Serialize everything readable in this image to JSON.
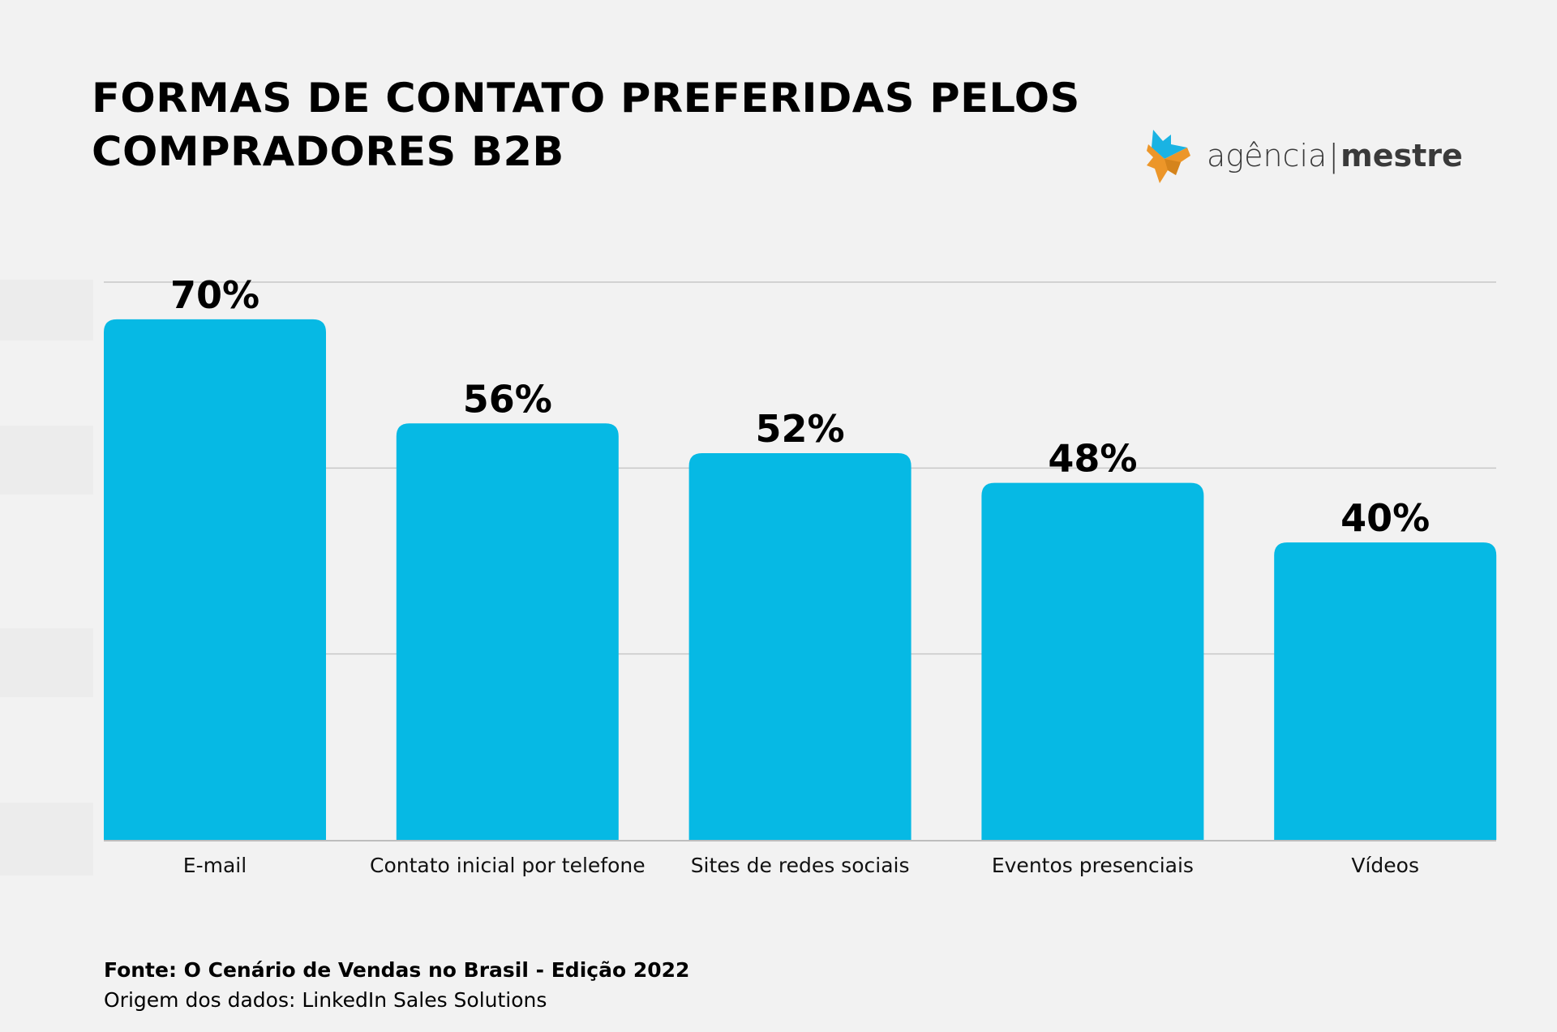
{
  "title_lines": [
    "FORMAS DE CONTATO PREFERIDAS PELOS",
    "COMPRADORES B2B"
  ],
  "logo": {
    "icon": "agencia-mestre-star-icon",
    "text_light": "agência",
    "separator": "|",
    "text_bold": "mestre",
    "colors": {
      "blue": "#1ab3e3",
      "orange": "#ec9629"
    }
  },
  "colors": {
    "bar": "#06b9e4",
    "gridline": "#c8c8c8",
    "axis": "#bdbdbd",
    "background": "#f2f2f2"
  },
  "chart_data": {
    "type": "bar",
    "title": "FORMAS DE CONTATO PREFERIDAS PELOS COMPRADORES B2B",
    "categories": [
      "E-mail",
      "Contato inicial por telefone",
      "Sites de redes sociais",
      "Eventos presenciais",
      "Vídeos"
    ],
    "values": [
      70,
      56,
      52,
      48,
      40
    ],
    "value_labels": [
      "70%",
      "56%",
      "52%",
      "48%",
      "40%"
    ],
    "unit": "%",
    "xlabel": "",
    "ylabel": "",
    "ylim": [
      0,
      75
    ],
    "gridlines": [
      25,
      50,
      75
    ],
    "grid": true,
    "legend": "none"
  },
  "source": {
    "line1": "Fonte: O Cenário de Vendas no Brasil - Edição 2022",
    "line2": "Origem dos dados: LinkedIn Sales Solutions"
  }
}
